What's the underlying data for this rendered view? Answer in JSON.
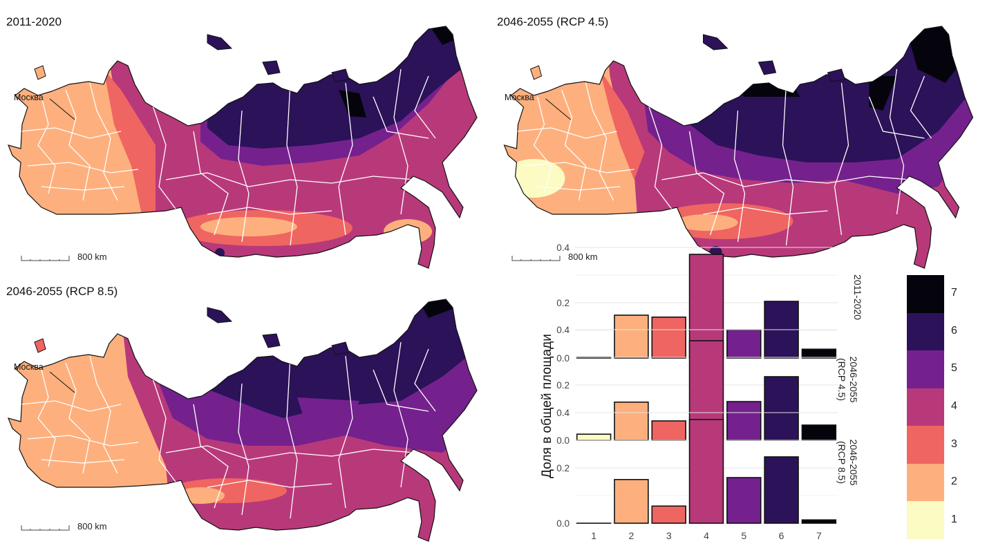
{
  "maps": [
    {
      "id": "map-2011-2020",
      "title": "2011-2020",
      "moscow": "Москва",
      "scale_label": "800 km"
    },
    {
      "id": "map-rcp45",
      "title": "2046-2055 (RCP 4.5)",
      "moscow": "Москва",
      "scale_label": "800 km"
    },
    {
      "id": "map-rcp85",
      "title": "2046-2055 (RCP 8.5)",
      "moscow": "Москва",
      "scale_label": "800 km"
    }
  ],
  "palette": {
    "1": "#fbfbc3",
    "2": "#fdb07d",
    "3": "#ef6561",
    "4": "#b8397a",
    "5": "#74218e",
    "6": "#2c1259",
    "7": "#05040c"
  },
  "legend": {
    "classes": [
      "7",
      "6",
      "5",
      "4",
      "3",
      "2",
      "1"
    ]
  },
  "chart_data": {
    "type": "bar",
    "ylabel": "Доля в общей площади",
    "categories": [
      "1",
      "2",
      "3",
      "4",
      "5",
      "6",
      "7"
    ],
    "y_ticks": [
      "0.0",
      "0.2",
      "0.4"
    ],
    "ylim": [
      0,
      0.44
    ],
    "grid": true,
    "facets": [
      {
        "label": "2011-2020",
        "values": [
          0.003,
          0.155,
          0.148,
          0.375,
          0.102,
          0.205,
          0.032
        ]
      },
      {
        "label": "2046-2055 (RCP 4.5)",
        "values": [
          0.022,
          0.138,
          0.07,
          0.36,
          0.14,
          0.23,
          0.055
        ]
      },
      {
        "label": "2046-2055 (RCP 8.5)",
        "values": [
          0.0,
          0.158,
          0.062,
          0.375,
          0.165,
          0.24,
          0.012
        ]
      }
    ]
  }
}
